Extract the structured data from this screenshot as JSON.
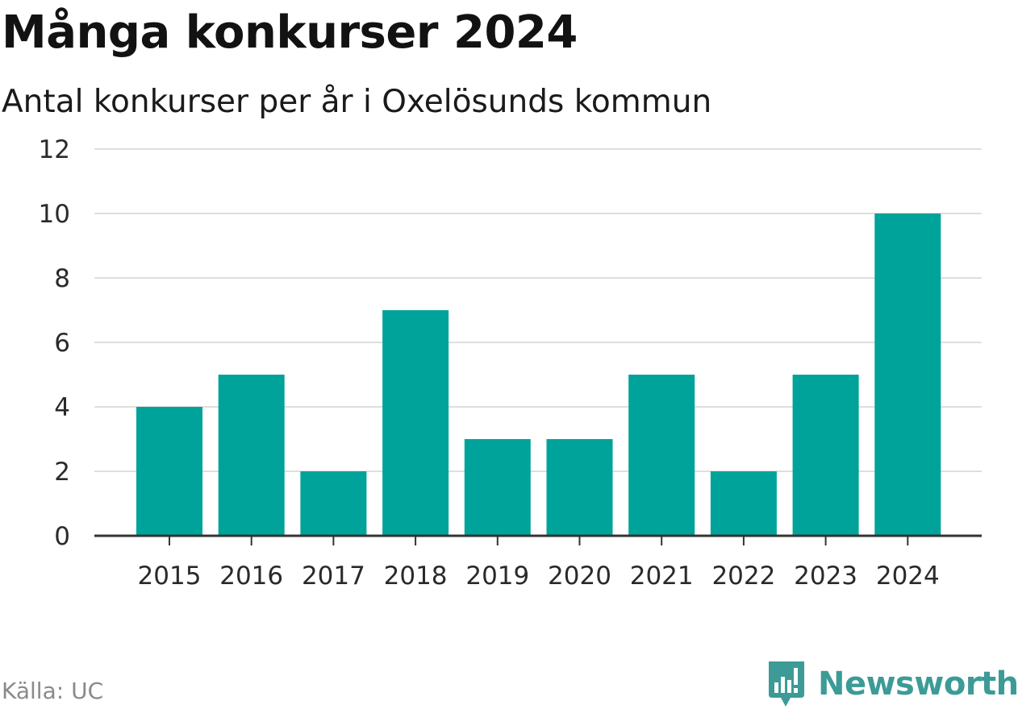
{
  "chart_data": {
    "type": "bar",
    "title": "Många konkurser 2024",
    "subtitle": "Antal konkurser per år i Oxelösunds kommun",
    "categories": [
      "2015",
      "2016",
      "2017",
      "2018",
      "2019",
      "2020",
      "2021",
      "2022",
      "2023",
      "2024"
    ],
    "values": [
      4,
      5,
      2,
      7,
      3,
      3,
      5,
      2,
      5,
      10
    ],
    "ylim": [
      0,
      12
    ],
    "yticks": [
      0,
      2,
      4,
      6,
      8,
      10,
      12
    ],
    "grid": true,
    "bar_color": "#00a39a"
  },
  "footer": {
    "source": "Källa: UC",
    "brand": "Newsworthy",
    "brand_color": "#3c9b97",
    "brand_icon": "newsworthy-logo-icon"
  }
}
